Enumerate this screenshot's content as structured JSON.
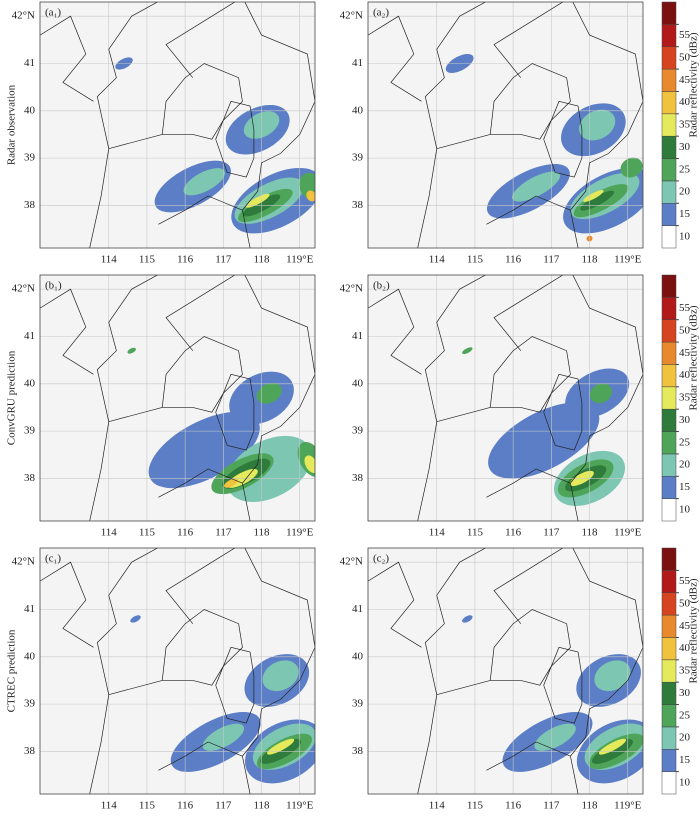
{
  "chart_data": {
    "type": "map",
    "xlim": [
      112.2,
      119.4
    ],
    "ylim": [
      37.1,
      42.3
    ],
    "xticks": [
      114,
      115,
      116,
      117,
      118,
      {
        "value": 119,
        "label": "119°E"
      }
    ],
    "yticks": [
      38,
      39,
      40,
      41,
      {
        "value": 42,
        "label": "42°N"
      }
    ],
    "grid": true,
    "colorbar": {
      "label": "Radar reflectivity (dBz)",
      "ticks": [
        10,
        15,
        20,
        25,
        30,
        35,
        40,
        45,
        50,
        55
      ],
      "colors": [
        "#ffffff",
        "#5b7ec6",
        "#7cc6b2",
        "#4ea55a",
        "#2e7b3c",
        "#e4ea5c",
        "#f1c23e",
        "#e9892e",
        "#d6441f",
        "#b21a1a",
        "#7a1010"
      ]
    },
    "rows": [
      {
        "label": "Radar observation",
        "panels": [
          {
            "label": "(a₁)",
            "cells": [
              {
                "lon": 116.2,
                "lat": 38.4,
                "dlon": 1.1,
                "dlat": 0.4,
                "dbz": 12
              },
              {
                "lon": 117.9,
                "lat": 39.6,
                "dlon": 0.9,
                "dlat": 0.45,
                "dbz": 12
              },
              {
                "lon": 118.4,
                "lat": 38.1,
                "dlon": 1.3,
                "dlat": 0.55,
                "dbz": 12
              },
              {
                "lon": 114.4,
                "lat": 41.0,
                "dlon": 0.25,
                "dlat": 0.1,
                "dbz": 12
              },
              {
                "lon": 116.5,
                "lat": 38.5,
                "dlon": 0.6,
                "dlat": 0.2,
                "dbz": 17
              },
              {
                "lon": 118.0,
                "lat": 39.7,
                "dlon": 0.5,
                "dlat": 0.25,
                "dbz": 17
              },
              {
                "lon": 118.2,
                "lat": 38.1,
                "dlon": 1.0,
                "dlat": 0.35,
                "dbz": 17
              },
              {
                "lon": 118.1,
                "lat": 38.0,
                "dlon": 0.8,
                "dlat": 0.2,
                "dbz": 22
              },
              {
                "lon": 119.3,
                "lat": 38.4,
                "dlon": 0.3,
                "dlat": 0.3,
                "dbz": 22
              },
              {
                "lon": 118.0,
                "lat": 38.0,
                "dlon": 0.55,
                "dlat": 0.12,
                "dbz": 27
              },
              {
                "lon": 117.9,
                "lat": 38.1,
                "dlon": 0.35,
                "dlat": 0.07,
                "dbz": 32
              },
              {
                "lon": 119.3,
                "lat": 38.2,
                "dlon": 0.12,
                "dlat": 0.12,
                "dbz": 37
              }
            ]
          },
          {
            "label": "(a₂)",
            "cells": [
              {
                "lon": 116.4,
                "lat": 38.3,
                "dlon": 1.2,
                "dlat": 0.4,
                "dbz": 12
              },
              {
                "lon": 118.1,
                "lat": 39.6,
                "dlon": 0.9,
                "dlat": 0.5,
                "dbz": 12
              },
              {
                "lon": 118.5,
                "lat": 38.1,
                "dlon": 1.3,
                "dlat": 0.55,
                "dbz": 12
              },
              {
                "lon": 114.6,
                "lat": 41.0,
                "dlon": 0.4,
                "dlat": 0.15,
                "dbz": 12
              },
              {
                "lon": 116.6,
                "lat": 38.4,
                "dlon": 0.7,
                "dlat": 0.2,
                "dbz": 17
              },
              {
                "lon": 118.2,
                "lat": 39.7,
                "dlon": 0.5,
                "dlat": 0.3,
                "dbz": 17
              },
              {
                "lon": 118.4,
                "lat": 38.2,
                "dlon": 1.0,
                "dlat": 0.35,
                "dbz": 17
              },
              {
                "lon": 118.3,
                "lat": 38.1,
                "dlon": 0.8,
                "dlat": 0.2,
                "dbz": 22
              },
              {
                "lon": 119.1,
                "lat": 38.8,
                "dlon": 0.3,
                "dlat": 0.2,
                "dbz": 22
              },
              {
                "lon": 118.2,
                "lat": 38.1,
                "dlon": 0.5,
                "dlat": 0.1,
                "dbz": 27
              },
              {
                "lon": 118.1,
                "lat": 38.2,
                "dlon": 0.3,
                "dlat": 0.06,
                "dbz": 32
              },
              {
                "lon": 118.0,
                "lat": 37.3,
                "dlon": 0.08,
                "dlat": 0.06,
                "dbz": 42
              }
            ]
          }
        ]
      },
      {
        "label": "ConvGRU prediction",
        "panels": [
          {
            "label": "(b₁)",
            "cells": [
              {
                "lon": 116.5,
                "lat": 38.6,
                "dlon": 1.6,
                "dlat": 0.6,
                "dbz": 12
              },
              {
                "lon": 118.0,
                "lat": 39.7,
                "dlon": 0.9,
                "dlat": 0.5,
                "dbz": 12
              },
              {
                "lon": 118.2,
                "lat": 38.2,
                "dlon": 1.2,
                "dlat": 0.6,
                "dbz": 17
              },
              {
                "lon": 117.5,
                "lat": 38.1,
                "dlon": 0.9,
                "dlat": 0.3,
                "dbz": 22
              },
              {
                "lon": 117.6,
                "lat": 38.1,
                "dlon": 0.7,
                "dlat": 0.2,
                "dbz": 27
              },
              {
                "lon": 117.5,
                "lat": 38.0,
                "dlon": 0.45,
                "dlat": 0.12,
                "dbz": 32
              },
              {
                "lon": 117.2,
                "lat": 37.9,
                "dlon": 0.2,
                "dlat": 0.07,
                "dbz": 37
              },
              {
                "lon": 119.3,
                "lat": 38.4,
                "dlon": 0.3,
                "dlat": 0.4,
                "dbz": 22
              },
              {
                "lon": 119.3,
                "lat": 38.3,
                "dlon": 0.15,
                "dlat": 0.2,
                "dbz": 32
              },
              {
                "lon": 118.2,
                "lat": 39.8,
                "dlon": 0.35,
                "dlat": 0.2,
                "dbz": 22
              },
              {
                "lon": 114.6,
                "lat": 40.7,
                "dlon": 0.12,
                "dlat": 0.05,
                "dbz": 22
              }
            ]
          },
          {
            "label": "(b₂)",
            "cells": [
              {
                "lon": 116.8,
                "lat": 38.8,
                "dlon": 1.6,
                "dlat": 0.6,
                "dbz": 12
              },
              {
                "lon": 118.2,
                "lat": 39.8,
                "dlon": 0.9,
                "dlat": 0.45,
                "dbz": 12
              },
              {
                "lon": 118.0,
                "lat": 38.0,
                "dlon": 1.0,
                "dlat": 0.5,
                "dbz": 17
              },
              {
                "lon": 117.9,
                "lat": 38.0,
                "dlon": 0.8,
                "dlat": 0.3,
                "dbz": 22
              },
              {
                "lon": 117.9,
                "lat": 38.0,
                "dlon": 0.6,
                "dlat": 0.18,
                "dbz": 27
              },
              {
                "lon": 117.8,
                "lat": 38.0,
                "dlon": 0.35,
                "dlat": 0.1,
                "dbz": 32
              },
              {
                "lon": 118.3,
                "lat": 39.8,
                "dlon": 0.3,
                "dlat": 0.2,
                "dbz": 22
              },
              {
                "lon": 114.8,
                "lat": 40.7,
                "dlon": 0.15,
                "dlat": 0.05,
                "dbz": 22
              }
            ]
          }
        ]
      },
      {
        "label": "CTREC prediction",
        "panels": [
          {
            "label": "(c₁)",
            "cells": [
              {
                "lon": 116.8,
                "lat": 38.2,
                "dlon": 1.3,
                "dlat": 0.45,
                "dbz": 12
              },
              {
                "lon": 118.4,
                "lat": 39.5,
                "dlon": 0.9,
                "dlat": 0.5,
                "dbz": 12
              },
              {
                "lon": 118.6,
                "lat": 38.0,
                "dlon": 1.1,
                "dlat": 0.6,
                "dbz": 12
              },
              {
                "lon": 114.7,
                "lat": 40.8,
                "dlon": 0.15,
                "dlat": 0.06,
                "dbz": 12
              },
              {
                "lon": 117.0,
                "lat": 38.3,
                "dlon": 0.6,
                "dlat": 0.2,
                "dbz": 17
              },
              {
                "lon": 118.5,
                "lat": 39.6,
                "dlon": 0.5,
                "dlat": 0.3,
                "dbz": 17
              },
              {
                "lon": 118.6,
                "lat": 38.1,
                "dlon": 0.9,
                "dlat": 0.4,
                "dbz": 17
              },
              {
                "lon": 118.6,
                "lat": 38.0,
                "dlon": 0.8,
                "dlat": 0.25,
                "dbz": 22
              },
              {
                "lon": 118.5,
                "lat": 38.0,
                "dlon": 0.6,
                "dlat": 0.15,
                "dbz": 27
              },
              {
                "lon": 118.5,
                "lat": 38.1,
                "dlon": 0.4,
                "dlat": 0.08,
                "dbz": 32
              }
            ]
          },
          {
            "label": "(c₂)",
            "cells": [
              {
                "lon": 116.9,
                "lat": 38.2,
                "dlon": 1.3,
                "dlat": 0.45,
                "dbz": 12
              },
              {
                "lon": 118.5,
                "lat": 39.5,
                "dlon": 0.9,
                "dlat": 0.5,
                "dbz": 12
              },
              {
                "lon": 118.7,
                "lat": 38.0,
                "dlon": 1.1,
                "dlat": 0.6,
                "dbz": 12
              },
              {
                "lon": 114.8,
                "lat": 40.8,
                "dlon": 0.15,
                "dlat": 0.06,
                "dbz": 12
              },
              {
                "lon": 117.1,
                "lat": 38.3,
                "dlon": 0.6,
                "dlat": 0.2,
                "dbz": 17
              },
              {
                "lon": 118.6,
                "lat": 39.6,
                "dlon": 0.5,
                "dlat": 0.3,
                "dbz": 17
              },
              {
                "lon": 118.7,
                "lat": 38.1,
                "dlon": 0.9,
                "dlat": 0.4,
                "dbz": 17
              },
              {
                "lon": 118.7,
                "lat": 38.0,
                "dlon": 0.8,
                "dlat": 0.25,
                "dbz": 22
              },
              {
                "lon": 118.6,
                "lat": 38.0,
                "dlon": 0.6,
                "dlat": 0.15,
                "dbz": 27
              },
              {
                "lon": 118.6,
                "lat": 38.1,
                "dlon": 0.4,
                "dlat": 0.08,
                "dbz": 32
              }
            ]
          }
        ]
      }
    ]
  }
}
